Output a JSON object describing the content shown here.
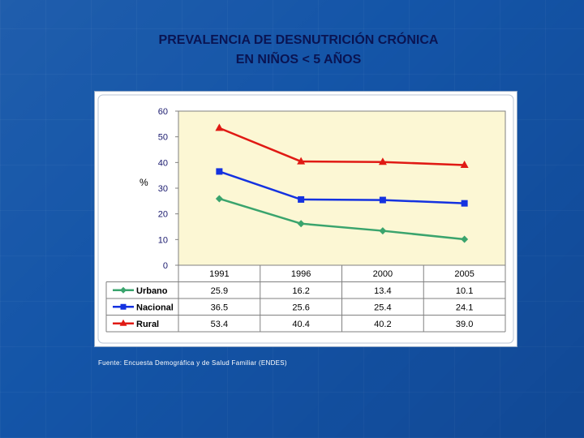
{
  "slide": {
    "title_line1": "PREVALENCIA DE DESNUTRICIÓN CRÓNICA",
    "title_line2": "EN NIÑOS < 5 AÑOS",
    "source": "Fuente: Encuesta Demográfica y de Salud Familiar (ENDES)"
  },
  "colors": {
    "background": "#1455a8",
    "title": "#0a1452",
    "plot_area": "#fcf7d4",
    "urbano": "#3aa46d",
    "nacional": "#1432e0",
    "rural": "#e01a14"
  },
  "chart_data": {
    "type": "line",
    "title": "",
    "xlabel": "",
    "ylabel": "%",
    "ylim": [
      0,
      60
    ],
    "yticks": [
      0,
      10,
      20,
      30,
      40,
      50,
      60
    ],
    "categories": [
      "1991",
      "1996",
      "2000",
      "2005"
    ],
    "grid": false,
    "legend": "data-table",
    "series": [
      {
        "name": "Urbano",
        "values": [
          25.9,
          16.2,
          13.4,
          10.1
        ],
        "value_labels": [
          "25.9",
          "16.2",
          "13.4",
          "10.1"
        ],
        "marker": "diamond"
      },
      {
        "name": "Nacional",
        "values": [
          36.5,
          25.6,
          25.4,
          24.1
        ],
        "value_labels": [
          "36.5",
          "25.6",
          "25.4",
          "24.1"
        ],
        "marker": "square"
      },
      {
        "name": "Rural",
        "values": [
          53.4,
          40.4,
          40.2,
          39.0
        ],
        "value_labels": [
          "53.4",
          "40.4",
          "40.2",
          "39.0"
        ],
        "marker": "triangle"
      }
    ]
  }
}
